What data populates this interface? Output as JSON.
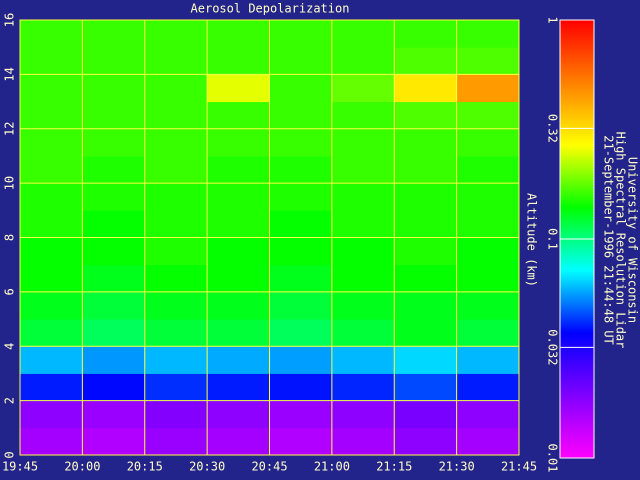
{
  "chart_data": {
    "type": "heatmap",
    "title": "Aerosol Depolarization",
    "y_label": "Altitude (km)",
    "notes": [
      "University of Wisconsin",
      "High Spectral Resolution Lidar",
      "21-September-1996 21:44:48 UT"
    ],
    "x": [
      19.875,
      20.125,
      20.375,
      20.625,
      20.875,
      21.125,
      21.375,
      21.625
    ],
    "y": [
      0.5,
      1.5,
      2.5,
      3.5,
      4.5,
      5.5,
      6.5,
      7.5,
      8.5,
      9.5,
      10.5,
      11.5,
      12.5,
      13.5,
      14.5,
      15.5
    ],
    "values": [
      [
        0.016,
        0.015,
        0.017,
        0.016,
        0.015,
        0.016,
        0.018,
        0.016
      ],
      [
        0.018,
        0.017,
        0.019,
        0.018,
        0.017,
        0.018,
        0.02,
        0.018
      ],
      [
        0.04,
        0.038,
        0.042,
        0.04,
        0.039,
        0.041,
        0.045,
        0.04
      ],
      [
        0.06,
        0.055,
        0.06,
        0.058,
        0.056,
        0.06,
        0.065,
        0.06
      ],
      [
        0.12,
        0.11,
        0.12,
        0.12,
        0.11,
        0.12,
        0.13,
        0.12
      ],
      [
        0.13,
        0.12,
        0.13,
        0.13,
        0.12,
        0.13,
        0.13,
        0.13
      ],
      [
        0.14,
        0.13,
        0.14,
        0.14,
        0.13,
        0.14,
        0.14,
        0.14
      ],
      [
        0.14,
        0.14,
        0.15,
        0.14,
        0.14,
        0.14,
        0.15,
        0.14
      ],
      [
        0.15,
        0.14,
        0.15,
        0.15,
        0.14,
        0.15,
        0.15,
        0.15
      ],
      [
        0.15,
        0.15,
        0.15,
        0.15,
        0.15,
        0.15,
        0.15,
        0.15
      ],
      [
        0.16,
        0.15,
        0.16,
        0.15,
        0.15,
        0.16,
        0.16,
        0.15
      ],
      [
        0.16,
        0.16,
        0.16,
        0.16,
        0.16,
        0.16,
        0.16,
        0.16
      ],
      [
        0.16,
        0.16,
        0.16,
        0.16,
        0.16,
        0.16,
        0.17,
        0.17
      ],
      [
        0.16,
        0.16,
        0.16,
        0.25,
        0.16,
        0.18,
        0.3,
        0.45
      ],
      [
        0.16,
        0.16,
        0.16,
        0.16,
        0.16,
        0.16,
        0.17,
        0.17
      ],
      [
        0.16,
        0.16,
        0.16,
        0.16,
        0.16,
        0.16,
        0.16,
        0.16
      ]
    ],
    "xlim": [
      19.75,
      21.75
    ],
    "xticks": [
      {
        "value": 19.75,
        "label": "19:45"
      },
      {
        "value": 20,
        "label": "20:00"
      },
      {
        "value": 20.25,
        "label": "20:15"
      },
      {
        "value": 20.5,
        "label": "20:30"
      },
      {
        "value": 20.75,
        "label": "20:45"
      },
      {
        "value": 21,
        "label": "21:00"
      },
      {
        "value": 21.25,
        "label": "21:15"
      },
      {
        "value": 21.5,
        "label": "21:30"
      },
      {
        "value": 21.75,
        "label": "21:45"
      }
    ],
    "ylim": [
      0,
      16
    ],
    "yticks": [
      0,
      2,
      4,
      6,
      8,
      10,
      12,
      14,
      16
    ],
    "clim": [
      0.01,
      1
    ],
    "cticks": [
      0.01,
      0.032,
      0.1,
      0.32,
      1
    ],
    "color_scale": "log",
    "colormap": [
      "#ff00ff",
      "#8000ff",
      "#0000ff",
      "#00ffff",
      "#00ff00",
      "#ffff00",
      "#ff8000",
      "#ff0000"
    ],
    "grid": true,
    "grid_color": "#ffff40"
  }
}
